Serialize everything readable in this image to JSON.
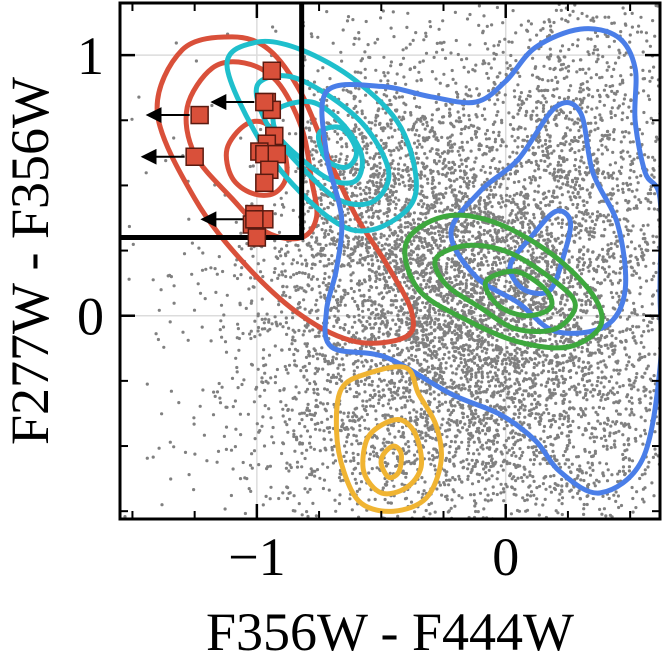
{
  "chart_data": {
    "type": "scatter",
    "xlabel": "F356W - F444W",
    "ylabel": "F277W - F356W",
    "xlim": [
      -1.55,
      0.62
    ],
    "ylim": [
      -0.78,
      1.2
    ],
    "x_ticks": [
      {
        "value": -1,
        "label": "−1"
      },
      {
        "value": 0,
        "label": "0"
      }
    ],
    "y_ticks": [
      {
        "value": 0,
        "label": "0"
      },
      {
        "value": 1,
        "label": "1"
      }
    ],
    "grid": true,
    "selection_region": {
      "x_max": -0.82,
      "y_min": 0.3
    },
    "colors": {
      "background_points": "#808080",
      "red": "#d9503a",
      "cyan": "#1fbfcc",
      "blue": "#4a7ee8",
      "green": "#3ea83e",
      "yellow": "#f0b432",
      "marker_fill": "#d9503a",
      "marker_edge": "#5a1a10"
    },
    "marker_points": [
      {
        "x": -0.94,
        "y": 0.94
      },
      {
        "x": -0.96,
        "y": 0.82
      },
      {
        "x": -0.94,
        "y": 0.79
      },
      {
        "x": -0.93,
        "y": 0.69
      },
      {
        "x": -0.96,
        "y": 0.66
      },
      {
        "x": -0.99,
        "y": 0.63
      },
      {
        "x": -0.97,
        "y": 0.62
      },
      {
        "x": -0.92,
        "y": 0.62
      },
      {
        "x": -0.95,
        "y": 0.56
      },
      {
        "x": -0.97,
        "y": 0.51
      },
      {
        "x": -1.01,
        "y": 0.39
      },
      {
        "x": -0.97,
        "y": 0.37
      },
      {
        "x": -1.02,
        "y": 0.35
      },
      {
        "x": -1.0,
        "y": 0.3
      }
    ],
    "upper_limit_markers": [
      {
        "x": -1.23,
        "y": 0.77
      },
      {
        "x": -1.25,
        "y": 0.61
      },
      {
        "x": -0.97,
        "y": 0.82
      },
      {
        "x": -1.01,
        "y": 0.37
      }
    ],
    "contours": [
      {
        "color": "red",
        "levels": [
          [
            [
              -1.4,
              0.78
            ],
            [
              -1.3,
              1.02
            ],
            [
              -1.1,
              1.07
            ],
            [
              -0.95,
              1.02
            ],
            [
              -0.82,
              0.85
            ],
            [
              -0.7,
              0.58
            ],
            [
              -0.6,
              0.38
            ],
            [
              -0.48,
              0.2
            ],
            [
              -0.38,
              0.02
            ],
            [
              -0.4,
              -0.08
            ],
            [
              -0.6,
              -0.1
            ],
            [
              -0.82,
              0.0
            ],
            [
              -1.05,
              0.2
            ],
            [
              -1.25,
              0.45
            ],
            [
              -1.4,
              0.78
            ]
          ],
          [
            [
              -1.28,
              0.8
            ],
            [
              -1.18,
              0.95
            ],
            [
              -1.05,
              0.97
            ],
            [
              -0.92,
              0.9
            ],
            [
              -0.82,
              0.72
            ],
            [
              -0.78,
              0.52
            ],
            [
              -0.76,
              0.38
            ],
            [
              -0.82,
              0.3
            ],
            [
              -0.96,
              0.32
            ],
            [
              -1.1,
              0.45
            ],
            [
              -1.25,
              0.62
            ],
            [
              -1.28,
              0.8
            ]
          ],
          [
            [
              -1.12,
              0.64
            ],
            [
              -1.05,
              0.73
            ],
            [
              -0.97,
              0.74
            ],
            [
              -0.9,
              0.66
            ],
            [
              -0.88,
              0.54
            ],
            [
              -0.93,
              0.47
            ],
            [
              -1.02,
              0.47
            ],
            [
              -1.1,
              0.53
            ],
            [
              -1.12,
              0.64
            ]
          ]
        ]
      },
      {
        "color": "cyan",
        "levels": [
          [
            [
              -1.12,
              0.96
            ],
            [
              -1.0,
              1.05
            ],
            [
              -0.82,
              1.02
            ],
            [
              -0.6,
              0.9
            ],
            [
              -0.42,
              0.72
            ],
            [
              -0.36,
              0.48
            ],
            [
              -0.46,
              0.36
            ],
            [
              -0.62,
              0.33
            ],
            [
              -0.8,
              0.45
            ],
            [
              -0.98,
              0.66
            ],
            [
              -1.12,
              0.96
            ]
          ],
          [
            [
              -1.0,
              0.88
            ],
            [
              -0.88,
              0.92
            ],
            [
              -0.72,
              0.85
            ],
            [
              -0.56,
              0.72
            ],
            [
              -0.47,
              0.55
            ],
            [
              -0.53,
              0.44
            ],
            [
              -0.66,
              0.44
            ],
            [
              -0.8,
              0.55
            ],
            [
              -0.95,
              0.72
            ],
            [
              -1.0,
              0.88
            ]
          ],
          [
            [
              -0.92,
              0.79
            ],
            [
              -0.78,
              0.82
            ],
            [
              -0.66,
              0.74
            ],
            [
              -0.58,
              0.62
            ],
            [
              -0.6,
              0.52
            ],
            [
              -0.7,
              0.52
            ],
            [
              -0.82,
              0.6
            ],
            [
              -0.92,
              0.7
            ],
            [
              -0.92,
              0.79
            ]
          ],
          [
            [
              -0.75,
              0.7
            ],
            [
              -0.66,
              0.72
            ],
            [
              -0.6,
              0.63
            ],
            [
              -0.64,
              0.57
            ],
            [
              -0.72,
              0.6
            ],
            [
              -0.75,
              0.7
            ]
          ]
        ]
      },
      {
        "color": "blue",
        "levels": [
          [
            [
              -0.72,
              0.86
            ],
            [
              -0.5,
              0.88
            ],
            [
              -0.3,
              0.84
            ],
            [
              -0.12,
              0.82
            ],
            [
              0.0,
              0.9
            ],
            [
              0.12,
              1.03
            ],
            [
              0.3,
              1.1
            ],
            [
              0.45,
              1.07
            ],
            [
              0.52,
              0.95
            ],
            [
              0.52,
              0.75
            ],
            [
              0.56,
              0.55
            ],
            [
              0.62,
              0.45
            ],
            [
              0.62,
              0.1
            ],
            [
              0.62,
              -0.2
            ],
            [
              0.55,
              -0.55
            ],
            [
              0.38,
              -0.68
            ],
            [
              0.22,
              -0.6
            ],
            [
              0.12,
              -0.48
            ],
            [
              -0.02,
              -0.38
            ],
            [
              -0.22,
              -0.3
            ],
            [
              -0.48,
              -0.16
            ],
            [
              -0.7,
              -0.12
            ],
            [
              -0.72,
              0.02
            ],
            [
              -0.68,
              0.18
            ],
            [
              -0.66,
              0.38
            ],
            [
              -0.72,
              0.62
            ],
            [
              -0.72,
              0.86
            ]
          ],
          [
            [
              -0.22,
              0.32
            ],
            [
              -0.1,
              0.48
            ],
            [
              0.05,
              0.6
            ],
            [
              0.2,
              0.8
            ],
            [
              0.3,
              0.78
            ],
            [
              0.35,
              0.55
            ],
            [
              0.45,
              0.35
            ],
            [
              0.48,
              0.1
            ],
            [
              0.4,
              -0.04
            ],
            [
              0.2,
              -0.06
            ],
            [
              0.05,
              0.05
            ],
            [
              -0.12,
              0.15
            ],
            [
              -0.22,
              0.32
            ]
          ],
          [
            [
              0.02,
              0.2
            ],
            [
              0.1,
              0.3
            ],
            [
              0.2,
              0.4
            ],
            [
              0.26,
              0.36
            ],
            [
              0.23,
              0.22
            ],
            [
              0.18,
              0.1
            ],
            [
              0.1,
              0.09
            ],
            [
              0.04,
              0.13
            ],
            [
              0.02,
              0.2
            ]
          ]
        ]
      },
      {
        "color": "green",
        "levels": [
          [
            [
              -0.4,
              0.28
            ],
            [
              -0.25,
              0.38
            ],
            [
              -0.05,
              0.36
            ],
            [
              0.18,
              0.24
            ],
            [
              0.35,
              0.08
            ],
            [
              0.38,
              -0.04
            ],
            [
              0.25,
              -0.12
            ],
            [
              0.05,
              -0.1
            ],
            [
              -0.15,
              -0.02
            ],
            [
              -0.35,
              0.1
            ],
            [
              -0.4,
              0.28
            ]
          ],
          [
            [
              -0.28,
              0.22
            ],
            [
              -0.15,
              0.27
            ],
            [
              0.02,
              0.24
            ],
            [
              0.2,
              0.13
            ],
            [
              0.28,
              0.04
            ],
            [
              0.2,
              -0.05
            ],
            [
              0.04,
              -0.05
            ],
            [
              -0.1,
              0.03
            ],
            [
              -0.24,
              0.12
            ],
            [
              -0.28,
              0.22
            ]
          ],
          [
            [
              -0.08,
              0.13
            ],
            [
              0.04,
              0.17
            ],
            [
              0.16,
              0.1
            ],
            [
              0.18,
              0.03
            ],
            [
              0.08,
              0.0
            ],
            [
              -0.03,
              0.04
            ],
            [
              -0.08,
              0.13
            ]
          ]
        ]
      },
      {
        "color": "yellow",
        "levels": [
          [
            [
              -0.66,
              -0.28
            ],
            [
              -0.55,
              -0.22
            ],
            [
              -0.4,
              -0.2
            ],
            [
              -0.35,
              -0.3
            ],
            [
              -0.28,
              -0.42
            ],
            [
              -0.26,
              -0.56
            ],
            [
              -0.32,
              -0.7
            ],
            [
              -0.45,
              -0.75
            ],
            [
              -0.58,
              -0.72
            ],
            [
              -0.65,
              -0.6
            ],
            [
              -0.68,
              -0.44
            ],
            [
              -0.66,
              -0.28
            ]
          ],
          [
            [
              -0.56,
              -0.48
            ],
            [
              -0.5,
              -0.42
            ],
            [
              -0.42,
              -0.4
            ],
            [
              -0.36,
              -0.46
            ],
            [
              -0.34,
              -0.58
            ],
            [
              -0.4,
              -0.66
            ],
            [
              -0.5,
              -0.68
            ],
            [
              -0.57,
              -0.6
            ],
            [
              -0.56,
              -0.48
            ]
          ],
          [
            [
              -0.49,
              -0.53
            ],
            [
              -0.45,
              -0.5
            ],
            [
              -0.42,
              -0.53
            ],
            [
              -0.43,
              -0.6
            ],
            [
              -0.47,
              -0.62
            ],
            [
              -0.5,
              -0.57
            ],
            [
              -0.49,
              -0.53
            ]
          ]
        ]
      }
    ]
  }
}
